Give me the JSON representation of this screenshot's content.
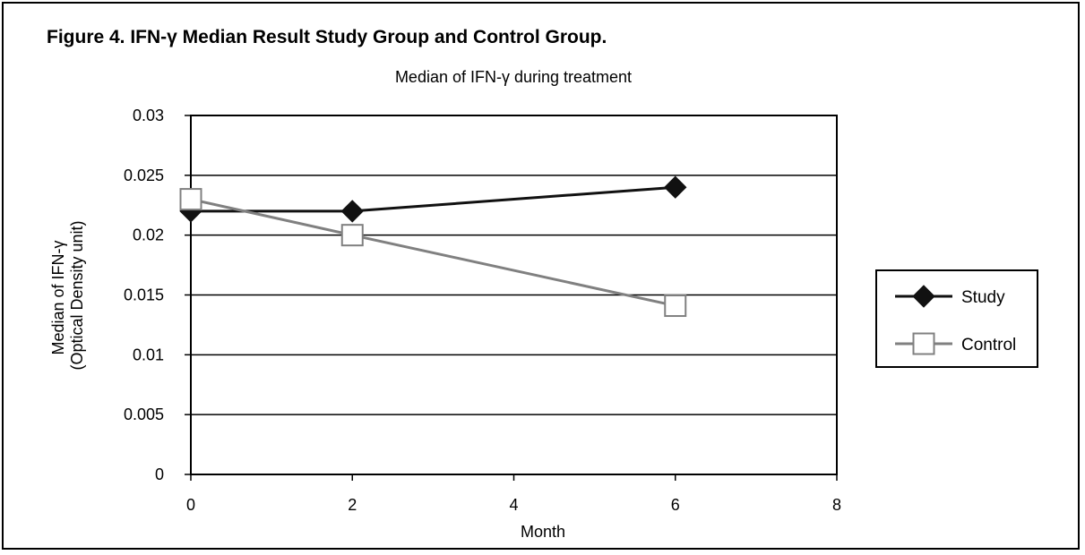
{
  "figure_title": "Figure 4. IFN-γ Median Result Study Group and Control Group.",
  "chart_data": {
    "type": "line",
    "title": "Median of IFN-γ during treatment",
    "xlabel": "Month",
    "ylabel_lines": [
      "Median of IFN-γ",
      "(Optical Density unit)"
    ],
    "xlim": [
      0,
      8
    ],
    "ylim": [
      0,
      0.03
    ],
    "x_ticks": [
      "0",
      "2",
      "4",
      "6",
      "8"
    ],
    "y_ticks": [
      "0",
      "0.005",
      "0.01",
      "0.015",
      "0.02",
      "0.025",
      "0.03"
    ],
    "grid": "horizontal",
    "legend_position": "right",
    "series": [
      {
        "name": "Study",
        "x": [
          0,
          2,
          6
        ],
        "values": [
          0.022,
          0.022,
          0.024
        ],
        "marker": "diamond",
        "color": "#111111"
      },
      {
        "name": "Control",
        "x": [
          0,
          2,
          6
        ],
        "values": [
          0.023,
          0.02,
          0.0141
        ],
        "marker": "square",
        "color": "#808080"
      }
    ]
  }
}
